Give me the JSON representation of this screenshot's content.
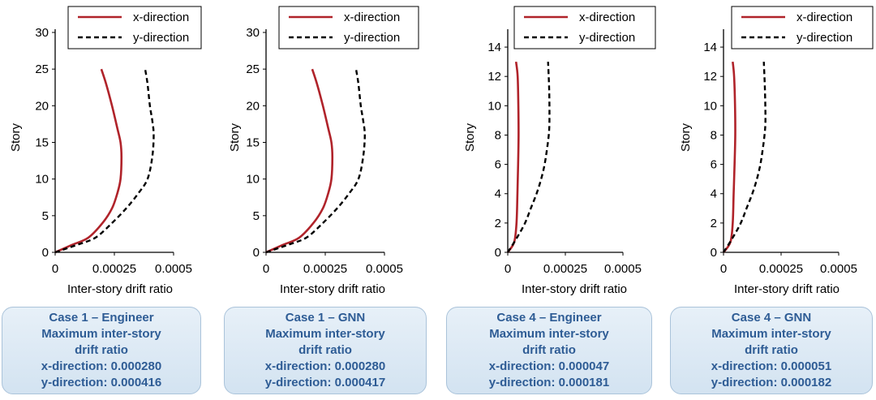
{
  "chart_data": [
    {
      "type": "line",
      "xlabel": "Inter-story drift ratio",
      "ylabel": "Story",
      "xlim": [
        0,
        0.0005
      ],
      "ylim": [
        0,
        30
      ],
      "xticks": [
        0,
        0.00025,
        0.0005
      ],
      "xtick_labels": [
        "0",
        "0.00025",
        "0.0005"
      ],
      "yticks": [
        0,
        5,
        10,
        15,
        20,
        25,
        30
      ],
      "legend_position": "top",
      "series": [
        {
          "name": "x-direction",
          "color": "#b0232a",
          "style": "solid",
          "x": [
            0,
            7e-05,
            0.00014,
            0.0002,
            0.00024,
            0.000262,
            0.000276,
            0.00028,
            0.000276,
            0.000262,
            0.00024,
            0.000215,
            0.000195
          ],
          "y": [
            0,
            1,
            2,
            4,
            6,
            8,
            10,
            13,
            15,
            17,
            20,
            23,
            25
          ]
        },
        {
          "name": "y-direction",
          "color": "#000000",
          "style": "dashed",
          "x": [
            0,
            9e-05,
            0.00017,
            0.00024,
            0.0003,
            0.00035,
            0.00039,
            0.00041,
            0.000416,
            0.00041,
            0.0004,
            0.00039,
            0.00038
          ],
          "y": [
            0,
            1,
            2,
            4,
            6,
            8,
            10,
            13,
            16,
            18,
            20,
            23,
            25
          ]
        }
      ]
    },
    {
      "type": "line",
      "xlabel": "Inter-story drift ratio",
      "ylabel": "Story",
      "xlim": [
        0,
        0.0005
      ],
      "ylim": [
        0,
        30
      ],
      "xticks": [
        0,
        0.00025,
        0.0005
      ],
      "xtick_labels": [
        "0",
        "0.00025",
        "0.0005"
      ],
      "yticks": [
        0,
        5,
        10,
        15,
        20,
        25,
        30
      ],
      "legend_position": "top",
      "series": [
        {
          "name": "x-direction",
          "color": "#b0232a",
          "style": "solid",
          "x": [
            0,
            7e-05,
            0.00014,
            0.0002,
            0.00024,
            0.000262,
            0.000276,
            0.00028,
            0.000276,
            0.000262,
            0.00024,
            0.000215,
            0.000195
          ],
          "y": [
            0,
            1,
            2,
            4,
            6,
            8,
            10,
            13,
            15,
            17,
            20,
            23,
            25
          ]
        },
        {
          "name": "y-direction",
          "color": "#000000",
          "style": "dashed",
          "x": [
            0,
            9e-05,
            0.00017,
            0.00024,
            0.0003,
            0.00035,
            0.00039,
            0.00041,
            0.000417,
            0.00041,
            0.0004,
            0.00039,
            0.00038
          ],
          "y": [
            0,
            1,
            2,
            4,
            6,
            8,
            10,
            13,
            16,
            18,
            20,
            23,
            25
          ]
        }
      ]
    },
    {
      "type": "line",
      "xlabel": "Inter-story drift ratio",
      "ylabel": "Story",
      "xlim": [
        0,
        0.0005
      ],
      "ylim": [
        0,
        15
      ],
      "xticks": [
        0,
        0.00025,
        0.0005
      ],
      "xtick_labels": [
        "0",
        "0.00025",
        "0.0005"
      ],
      "yticks": [
        0,
        2,
        4,
        6,
        8,
        10,
        12,
        14
      ],
      "legend_position": "top",
      "series": [
        {
          "name": "x-direction",
          "color": "#b0232a",
          "style": "solid",
          "x": [
            0,
            2.8e-05,
            3.8e-05,
            4.2e-05,
            4.5e-05,
            4.7e-05,
            4.6e-05,
            4.3e-05,
            3.6e-05
          ],
          "y": [
            0,
            0.7,
            2,
            4,
            6,
            8,
            10,
            12,
            13
          ]
        },
        {
          "name": "y-direction",
          "color": "#000000",
          "style": "dashed",
          "x": [
            0,
            4e-05,
            7.5e-05,
            0.0001,
            0.000125,
            0.000145,
            0.00016,
            0.00017,
            0.000178,
            0.000181,
            0.00018,
            0.000175
          ],
          "y": [
            0,
            1,
            2,
            3,
            4,
            5,
            6,
            7,
            8,
            9,
            11,
            13
          ]
        }
      ]
    },
    {
      "type": "line",
      "xlabel": "Inter-story drift ratio",
      "ylabel": "Story",
      "xlim": [
        0,
        0.0005
      ],
      "ylim": [
        0,
        15
      ],
      "xticks": [
        0,
        0.00025,
        0.0005
      ],
      "xtick_labels": [
        "0",
        "0.00025",
        "0.0005"
      ],
      "yticks": [
        0,
        2,
        4,
        6,
        8,
        10,
        12,
        14
      ],
      "legend_position": "top",
      "series": [
        {
          "name": "x-direction",
          "color": "#b0232a",
          "style": "solid",
          "x": [
            0,
            3e-05,
            4e-05,
            4.4e-05,
            4.8e-05,
            5.1e-05,
            5e-05,
            4.6e-05,
            4e-05
          ],
          "y": [
            0,
            0.7,
            2,
            4,
            6,
            8,
            10,
            12,
            13
          ]
        },
        {
          "name": "y-direction",
          "color": "#000000",
          "style": "dashed",
          "x": [
            0,
            4e-05,
            7.5e-05,
            0.0001,
            0.000125,
            0.000145,
            0.00016,
            0.00017,
            0.000178,
            0.000182,
            0.00018,
            0.000175
          ],
          "y": [
            0,
            1,
            2,
            3,
            4,
            5,
            6,
            7,
            8,
            9,
            11,
            13
          ]
        }
      ]
    }
  ],
  "summaries": [
    {
      "case": "Case 1 – Engineer",
      "line1": "Maximum inter-story",
      "line2": "drift ratio",
      "x_line": "x-direction: 0.000280",
      "y_line": "y-direction: 0.000416"
    },
    {
      "case": "Case 1 – GNN",
      "line1": "Maximum inter-story",
      "line2": "drift ratio",
      "x_line": "x-direction: 0.000280",
      "y_line": "y-direction: 0.000417"
    },
    {
      "case": "Case 4 – Engineer",
      "line1": "Maximum inter-story",
      "line2": "drift ratio",
      "x_line": "x-direction: 0.000047",
      "y_line": "y-direction: 0.000181"
    },
    {
      "case": "Case 4 – GNN",
      "line1": "Maximum inter-story",
      "line2": "drift ratio",
      "x_line": "x-direction: 0.000051",
      "y_line": "y-direction: 0.000182"
    }
  ]
}
